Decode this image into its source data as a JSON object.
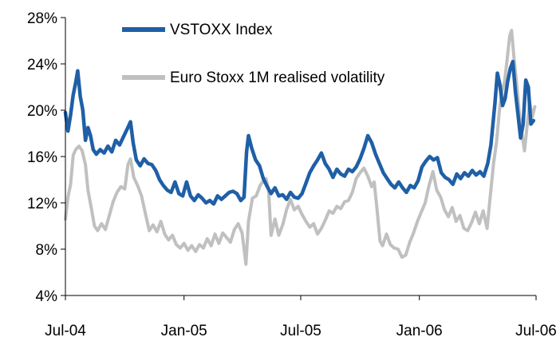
{
  "chart_data": {
    "type": "line",
    "title": "",
    "xlabel": "",
    "ylabel": "",
    "ylim": [
      4,
      28
    ],
    "xlim": [
      "2004-07-01",
      "2006-07-01"
    ],
    "y_unit": "%",
    "y_ticks": [
      "4%",
      "8%",
      "12%",
      "16%",
      "20%",
      "24%",
      "28%"
    ],
    "y_tick_values": [
      4,
      8,
      12,
      16,
      20,
      24,
      28
    ],
    "x_ticks": [
      "Jul-04",
      "Jan-05",
      "Jul-05",
      "Jan-06",
      "Jul-06"
    ],
    "x_tick_values": [
      "2004-07-01",
      "2005-01-01",
      "2005-07-01",
      "2006-01-01",
      "2006-07-01"
    ],
    "grid": false,
    "legend_position": "top",
    "series": [
      {
        "name": "VSTOXX Index",
        "color": "#1F5FA6",
        "points": [
          [
            "2004-07-01",
            19.8
          ],
          [
            "2004-07-05",
            18.2
          ],
          [
            "2004-07-09",
            19.6
          ],
          [
            "2004-07-13",
            21.3
          ],
          [
            "2004-07-17",
            22.4
          ],
          [
            "2004-07-20",
            23.4
          ],
          [
            "2004-07-24",
            21.2
          ],
          [
            "2004-07-28",
            20.0
          ],
          [
            "2004-08-01",
            17.4
          ],
          [
            "2004-08-05",
            18.5
          ],
          [
            "2004-08-09",
            17.8
          ],
          [
            "2004-08-13",
            16.6
          ],
          [
            "2004-08-18",
            16.2
          ],
          [
            "2004-08-24",
            16.6
          ],
          [
            "2004-08-30",
            16.3
          ],
          [
            "2004-09-05",
            16.9
          ],
          [
            "2004-09-11",
            16.4
          ],
          [
            "2004-09-17",
            17.4
          ],
          [
            "2004-09-23",
            17.0
          ],
          [
            "2004-09-29",
            17.7
          ],
          [
            "2004-10-05",
            18.4
          ],
          [
            "2004-10-10",
            19.0
          ],
          [
            "2004-10-14",
            17.2
          ],
          [
            "2004-10-19",
            15.7
          ],
          [
            "2004-10-25",
            15.2
          ],
          [
            "2004-10-31",
            15.8
          ],
          [
            "2004-11-06",
            15.4
          ],
          [
            "2004-11-12",
            15.3
          ],
          [
            "2004-11-18",
            14.8
          ],
          [
            "2004-11-24",
            14.0
          ],
          [
            "2004-11-30",
            13.5
          ],
          [
            "2004-12-06",
            13.1
          ],
          [
            "2004-12-12",
            12.9
          ],
          [
            "2004-12-18",
            13.8
          ],
          [
            "2004-12-24",
            12.8
          ],
          [
            "2004-12-30",
            12.6
          ],
          [
            "2005-01-05",
            13.8
          ],
          [
            "2005-01-11",
            12.6
          ],
          [
            "2005-01-17",
            12.2
          ],
          [
            "2005-01-23",
            12.7
          ],
          [
            "2005-01-29",
            12.4
          ],
          [
            "2005-02-04",
            12.0
          ],
          [
            "2005-02-10",
            12.2
          ],
          [
            "2005-02-16",
            11.9
          ],
          [
            "2005-02-22",
            12.6
          ],
          [
            "2005-02-28",
            12.3
          ],
          [
            "2005-03-06",
            12.6
          ],
          [
            "2005-03-12",
            12.9
          ],
          [
            "2005-03-18",
            13.0
          ],
          [
            "2005-03-24",
            12.8
          ],
          [
            "2005-03-30",
            12.2
          ],
          [
            "2005-04-04",
            12.5
          ],
          [
            "2005-04-08",
            16.4
          ],
          [
            "2005-04-11",
            17.8
          ],
          [
            "2005-04-16",
            16.7
          ],
          [
            "2005-04-22",
            15.7
          ],
          [
            "2005-04-28",
            15.2
          ],
          [
            "2005-05-04",
            14.1
          ],
          [
            "2005-05-10",
            13.4
          ],
          [
            "2005-05-16",
            12.8
          ],
          [
            "2005-05-22",
            13.3
          ],
          [
            "2005-05-28",
            12.6
          ],
          [
            "2005-06-03",
            12.7
          ],
          [
            "2005-06-09",
            12.3
          ],
          [
            "2005-06-15",
            12.9
          ],
          [
            "2005-06-21",
            12.5
          ],
          [
            "2005-06-27",
            12.4
          ],
          [
            "2005-07-03",
            12.8
          ],
          [
            "2005-07-09",
            13.7
          ],
          [
            "2005-07-15",
            14.6
          ],
          [
            "2005-07-21",
            15.2
          ],
          [
            "2005-07-27",
            15.7
          ],
          [
            "2005-08-02",
            16.3
          ],
          [
            "2005-08-08",
            15.4
          ],
          [
            "2005-08-14",
            14.9
          ],
          [
            "2005-08-20",
            14.2
          ],
          [
            "2005-08-26",
            14.9
          ],
          [
            "2005-09-01",
            14.5
          ],
          [
            "2005-09-07",
            14.3
          ],
          [
            "2005-09-13",
            14.9
          ],
          [
            "2005-09-19",
            14.7
          ],
          [
            "2005-09-25",
            15.1
          ],
          [
            "2005-10-01",
            15.8
          ],
          [
            "2005-10-07",
            16.7
          ],
          [
            "2005-10-13",
            17.8
          ],
          [
            "2005-10-19",
            17.2
          ],
          [
            "2005-10-25",
            16.2
          ],
          [
            "2005-10-31",
            15.4
          ],
          [
            "2005-11-06",
            14.6
          ],
          [
            "2005-11-12",
            14.1
          ],
          [
            "2005-11-18",
            13.6
          ],
          [
            "2005-11-24",
            13.3
          ],
          [
            "2005-11-30",
            13.8
          ],
          [
            "2005-12-06",
            13.3
          ],
          [
            "2005-12-12",
            12.9
          ],
          [
            "2005-12-18",
            13.5
          ],
          [
            "2005-12-24",
            13.3
          ],
          [
            "2005-12-30",
            13.9
          ],
          [
            "2006-01-05",
            15.1
          ],
          [
            "2006-01-11",
            15.6
          ],
          [
            "2006-01-17",
            16.0
          ],
          [
            "2006-01-23",
            15.7
          ],
          [
            "2006-01-29",
            15.9
          ],
          [
            "2006-02-04",
            14.6
          ],
          [
            "2006-02-10",
            14.2
          ],
          [
            "2006-02-16",
            14.0
          ],
          [
            "2006-02-22",
            13.6
          ],
          [
            "2006-02-28",
            14.5
          ],
          [
            "2006-03-06",
            14.1
          ],
          [
            "2006-03-12",
            14.6
          ],
          [
            "2006-03-18",
            14.3
          ],
          [
            "2006-03-24",
            14.8
          ],
          [
            "2006-03-30",
            14.4
          ],
          [
            "2006-04-05",
            14.7
          ],
          [
            "2006-04-11",
            14.3
          ],
          [
            "2006-04-17",
            15.4
          ],
          [
            "2006-04-22",
            17.0
          ],
          [
            "2006-04-28",
            20.5
          ],
          [
            "2006-05-02",
            23.2
          ],
          [
            "2006-05-06",
            22.2
          ],
          [
            "2006-05-10",
            20.4
          ],
          [
            "2006-05-14",
            21.0
          ],
          [
            "2006-05-18",
            22.5
          ],
          [
            "2006-05-22",
            23.6
          ],
          [
            "2006-05-26",
            24.2
          ],
          [
            "2006-05-30",
            21.6
          ],
          [
            "2006-06-03",
            19.6
          ],
          [
            "2006-06-07",
            17.6
          ],
          [
            "2006-06-11",
            18.8
          ],
          [
            "2006-06-15",
            22.6
          ],
          [
            "2006-06-19",
            22.0
          ],
          [
            "2006-06-23",
            18.8
          ],
          [
            "2006-06-27",
            19.1
          ]
        ]
      },
      {
        "name": "Euro Stoxx 1M realised volatility",
        "color": "#C0C0C0",
        "points": [
          [
            "2004-07-01",
            10.6
          ],
          [
            "2004-07-05",
            12.5
          ],
          [
            "2004-07-09",
            13.6
          ],
          [
            "2004-07-13",
            16.1
          ],
          [
            "2004-07-17",
            16.6
          ],
          [
            "2004-07-22",
            16.9
          ],
          [
            "2004-07-27",
            16.5
          ],
          [
            "2004-08-01",
            15.3
          ],
          [
            "2004-08-05",
            13.1
          ],
          [
            "2004-08-10",
            11.6
          ],
          [
            "2004-08-15",
            10.0
          ],
          [
            "2004-08-20",
            9.6
          ],
          [
            "2004-08-26",
            10.2
          ],
          [
            "2004-09-01",
            9.7
          ],
          [
            "2004-09-07",
            10.9
          ],
          [
            "2004-09-13",
            12.1
          ],
          [
            "2004-09-19",
            12.9
          ],
          [
            "2004-09-25",
            13.4
          ],
          [
            "2004-10-01",
            13.2
          ],
          [
            "2004-10-06",
            15.3
          ],
          [
            "2004-10-10",
            15.8
          ],
          [
            "2004-10-15",
            14.2
          ],
          [
            "2004-10-21",
            13.5
          ],
          [
            "2004-10-27",
            12.6
          ],
          [
            "2004-11-02",
            11.1
          ],
          [
            "2004-11-08",
            9.6
          ],
          [
            "2004-11-14",
            10.1
          ],
          [
            "2004-11-20",
            9.5
          ],
          [
            "2004-11-26",
            10.4
          ],
          [
            "2004-12-02",
            9.3
          ],
          [
            "2004-12-08",
            8.8
          ],
          [
            "2004-12-14",
            9.2
          ],
          [
            "2004-12-20",
            8.4
          ],
          [
            "2004-12-26",
            8.1
          ],
          [
            "2005-01-01",
            8.5
          ],
          [
            "2005-01-07",
            7.9
          ],
          [
            "2005-01-13",
            8.3
          ],
          [
            "2005-01-19",
            7.8
          ],
          [
            "2005-01-25",
            8.4
          ],
          [
            "2005-01-31",
            8.1
          ],
          [
            "2005-02-06",
            8.9
          ],
          [
            "2005-02-12",
            8.3
          ],
          [
            "2005-02-18",
            9.3
          ],
          [
            "2005-02-24",
            8.5
          ],
          [
            "2005-03-02",
            9.4
          ],
          [
            "2005-03-08",
            9.0
          ],
          [
            "2005-03-14",
            8.6
          ],
          [
            "2005-03-20",
            9.7
          ],
          [
            "2005-03-26",
            10.2
          ],
          [
            "2005-04-01",
            9.4
          ],
          [
            "2005-04-07",
            6.7
          ],
          [
            "2005-04-11",
            10.4
          ],
          [
            "2005-04-17",
            12.4
          ],
          [
            "2005-04-23",
            12.6
          ],
          [
            "2005-04-29",
            13.5
          ],
          [
            "2005-05-04",
            13.9
          ],
          [
            "2005-05-08",
            14.1
          ],
          [
            "2005-05-12",
            13.2
          ],
          [
            "2005-05-16",
            9.2
          ],
          [
            "2005-05-22",
            10.6
          ],
          [
            "2005-05-28",
            9.2
          ],
          [
            "2005-06-03",
            10.1
          ],
          [
            "2005-06-09",
            11.4
          ],
          [
            "2005-06-15",
            12.3
          ],
          [
            "2005-06-21",
            11.4
          ],
          [
            "2005-06-27",
            11.7
          ],
          [
            "2005-07-03",
            11.0
          ],
          [
            "2005-07-09",
            10.4
          ],
          [
            "2005-07-15",
            9.9
          ],
          [
            "2005-07-21",
            10.2
          ],
          [
            "2005-07-27",
            9.3
          ],
          [
            "2005-08-02",
            9.8
          ],
          [
            "2005-08-08",
            10.5
          ],
          [
            "2005-08-14",
            11.3
          ],
          [
            "2005-08-20",
            11.1
          ],
          [
            "2005-08-26",
            11.7
          ],
          [
            "2005-09-01",
            11.5
          ],
          [
            "2005-09-07",
            12.1
          ],
          [
            "2005-09-13",
            12.2
          ],
          [
            "2005-09-19",
            12.9
          ],
          [
            "2005-09-25",
            14.1
          ],
          [
            "2005-10-01",
            14.6
          ],
          [
            "2005-10-07",
            15.0
          ],
          [
            "2005-10-13",
            14.3
          ],
          [
            "2005-10-19",
            13.4
          ],
          [
            "2005-10-23",
            13.8
          ],
          [
            "2005-10-27",
            11.6
          ],
          [
            "2005-11-01",
            8.7
          ],
          [
            "2005-11-05",
            8.3
          ],
          [
            "2005-11-11",
            9.3
          ],
          [
            "2005-11-17",
            8.4
          ],
          [
            "2005-11-23",
            8.1
          ],
          [
            "2005-11-29",
            8.0
          ],
          [
            "2005-12-05",
            7.3
          ],
          [
            "2005-12-11",
            7.5
          ],
          [
            "2005-12-17",
            8.6
          ],
          [
            "2005-12-23",
            9.4
          ],
          [
            "2005-12-29",
            10.4
          ],
          [
            "2006-01-04",
            11.2
          ],
          [
            "2006-01-10",
            12.0
          ],
          [
            "2006-01-16",
            13.5
          ],
          [
            "2006-01-22",
            14.7
          ],
          [
            "2006-01-28",
            13.1
          ],
          [
            "2006-02-03",
            12.5
          ],
          [
            "2006-02-09",
            11.4
          ],
          [
            "2006-02-15",
            10.8
          ],
          [
            "2006-02-21",
            11.6
          ],
          [
            "2006-02-27",
            10.4
          ],
          [
            "2006-03-05",
            10.9
          ],
          [
            "2006-03-11",
            9.8
          ],
          [
            "2006-03-17",
            9.6
          ],
          [
            "2006-03-23",
            10.3
          ],
          [
            "2006-03-29",
            11.2
          ],
          [
            "2006-04-04",
            10.2
          ],
          [
            "2006-04-10",
            11.3
          ],
          [
            "2006-04-16",
            9.8
          ],
          [
            "2006-04-21",
            12.6
          ],
          [
            "2006-04-26",
            15.4
          ],
          [
            "2006-05-01",
            17.4
          ],
          [
            "2006-05-05",
            19.9
          ],
          [
            "2006-05-09",
            21.6
          ],
          [
            "2006-05-13",
            22.4
          ],
          [
            "2006-05-17",
            24.3
          ],
          [
            "2006-05-21",
            26.4
          ],
          [
            "2006-05-24",
            26.9
          ],
          [
            "2006-05-28",
            24.4
          ],
          [
            "2006-06-01",
            22.2
          ],
          [
            "2006-06-05",
            19.7
          ],
          [
            "2006-06-09",
            18.0
          ],
          [
            "2006-06-13",
            16.5
          ],
          [
            "2006-06-17",
            18.6
          ],
          [
            "2006-06-21",
            20.7
          ],
          [
            "2006-06-25",
            19.4
          ],
          [
            "2006-06-29",
            20.3
          ]
        ]
      }
    ]
  }
}
